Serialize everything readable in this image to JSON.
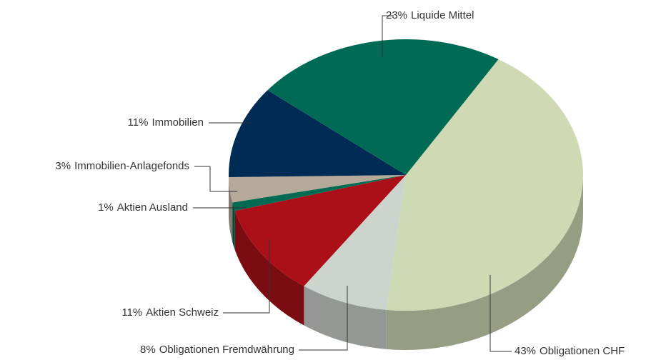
{
  "chart_data": {
    "type": "pie",
    "categories": [
      "Obligationen CHF",
      "Obligationen Fremdwährung",
      "Aktien Schweiz",
      "Aktien Ausland",
      "Immobilien-Anlagefonds",
      "Immobilien",
      "Liquide Mittel"
    ],
    "values": [
      43,
      8,
      11,
      1,
      3,
      11,
      23
    ],
    "value_labels": [
      "43%",
      "8%",
      "11%",
      "1%",
      "3%",
      "11%",
      "23%"
    ],
    "colors": [
      "#cfdab4",
      "#cdd3cd",
      "#ab1018",
      "#006a53",
      "#b5a999",
      "#002b55",
      "#006a55"
    ]
  }
}
